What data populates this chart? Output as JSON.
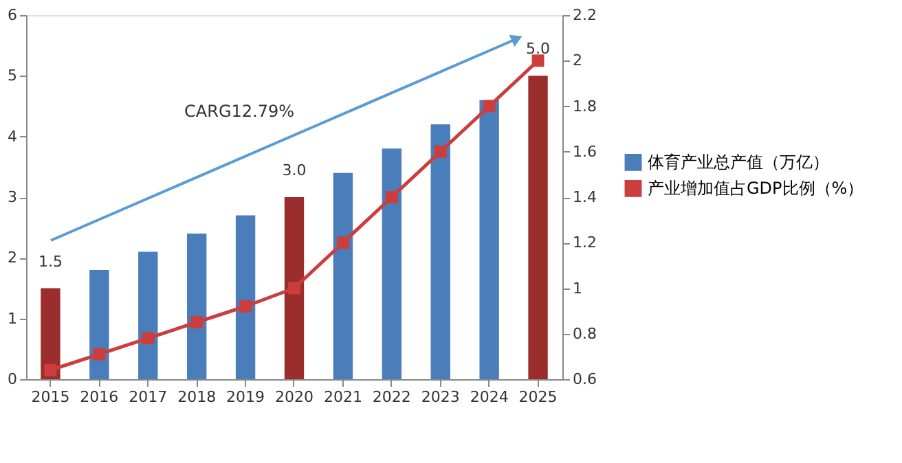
{
  "chart_data": {
    "type": "bar",
    "categories": [
      "2015",
      "2016",
      "2017",
      "2018",
      "2019",
      "2020",
      "2021",
      "2022",
      "2023",
      "2024",
      "2025"
    ],
    "series": [
      {
        "name": "体育产业总产值（万亿）",
        "color": "#4a7ebb",
        "colors": [
          "#9b2d2d",
          "#4a7ebb",
          "#4a7ebb",
          "#4a7ebb",
          "#4a7ebb",
          "#9b2d2d",
          "#4a7ebb",
          "#4a7ebb",
          "#4a7ebb",
          "#4a7ebb",
          "#9b2d2d"
        ],
        "values": [
          1.5,
          1.8,
          2.1,
          2.4,
          2.7,
          3.0,
          3.4,
          3.8,
          4.2,
          4.6,
          5.0
        ],
        "value_labels": [
          "1.5",
          null,
          null,
          null,
          null,
          "3.0",
          null,
          null,
          null,
          null,
          "5.0"
        ]
      },
      {
        "name": "产业增加值占GDP比例（%）",
        "type": "line",
        "axis": "y2",
        "color": "#cc3d3d",
        "marker": "square",
        "values": [
          0.64,
          0.71,
          0.78,
          0.85,
          0.92,
          1.0,
          1.2,
          1.4,
          1.6,
          1.8,
          2.0
        ]
      }
    ],
    "ylim": [
      0,
      6
    ],
    "yticks": [
      0,
      1,
      2,
      3,
      4,
      5,
      6
    ],
    "y2lim": [
      0.6,
      2.2
    ],
    "y2ticks": [
      0.6,
      0.8,
      1,
      1.2,
      1.4,
      1.6,
      1.8,
      2,
      2.2
    ],
    "annotations": [
      "CARG12.79%"
    ],
    "grid": false,
    "legend": "right"
  }
}
